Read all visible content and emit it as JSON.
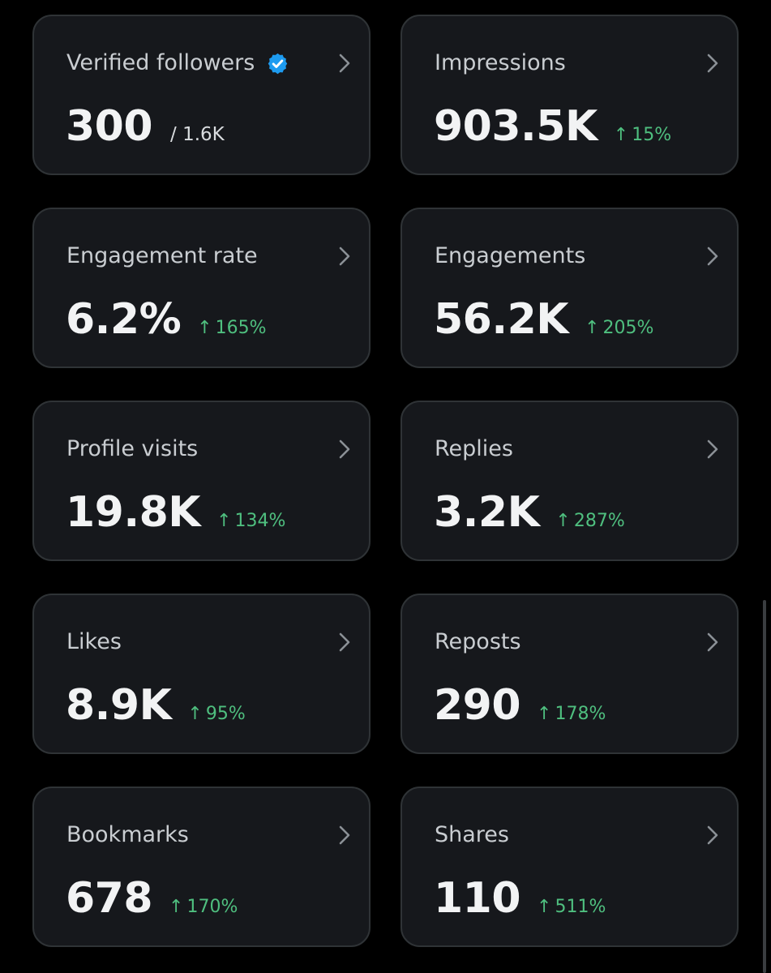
{
  "accent_color": "#1d9bf0",
  "positive_color": "#4fbf7f",
  "cards": [
    {
      "title": "Verified followers",
      "value": "300",
      "secondary": "/ 1.6K",
      "change": null,
      "icon": "verified-badge-icon"
    },
    {
      "title": "Impressions",
      "value": "903.5K",
      "secondary": null,
      "change": "15%"
    },
    {
      "title": "Engagement rate",
      "value": "6.2%",
      "secondary": null,
      "change": "165%"
    },
    {
      "title": "Engagements",
      "value": "56.2K",
      "secondary": null,
      "change": "205%"
    },
    {
      "title": "Profile visits",
      "value": "19.8K",
      "secondary": null,
      "change": "134%"
    },
    {
      "title": "Replies",
      "value": "3.2K",
      "secondary": null,
      "change": "287%"
    },
    {
      "title": "Likes",
      "value": "8.9K",
      "secondary": null,
      "change": "95%"
    },
    {
      "title": "Reposts",
      "value": "290",
      "secondary": null,
      "change": "178%"
    },
    {
      "title": "Bookmarks",
      "value": "678",
      "secondary": null,
      "change": "170%"
    },
    {
      "title": "Shares",
      "value": "110",
      "secondary": null,
      "change": "511%"
    }
  ],
  "change_arrow_glyph": "↑",
  "chevron_icon": "chevron-right-icon"
}
